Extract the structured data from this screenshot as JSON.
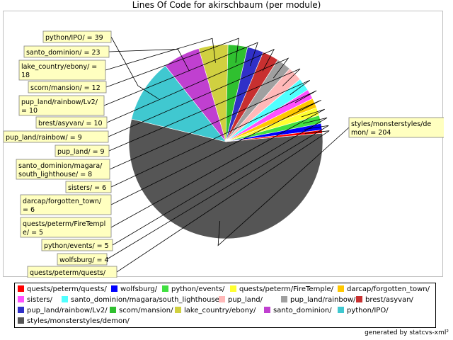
{
  "chart_data": {
    "type": "pie",
    "title": "Lines Of Code for akirschbaum (per module)",
    "slices": [
      {
        "name": "styles/monsterstyles/demon/",
        "label": [
          "styles/monsterstyles/de",
          "mon/ = 204"
        ],
        "value": 204,
        "color": "#555555"
      },
      {
        "name": "python/IPO/",
        "label": [
          "python/IPO/ = 39"
        ],
        "value": 39,
        "color": "#40c8d0"
      },
      {
        "name": "santo_dominion/",
        "label": [
          "santo_dominion/ = 23"
        ],
        "value": 23,
        "color": "#c040d0"
      },
      {
        "name": "lake_country/ebony/",
        "label": [
          "lake_country/ebony/ =",
          "18"
        ],
        "value": 18,
        "color": "#d0d040"
      },
      {
        "name": "scorn/mansion/",
        "label": [
          "scorn/mansion/ = 12"
        ],
        "value": 12,
        "color": "#30c030"
      },
      {
        "name": "pup_land/rainbow/Lv2/",
        "label": [
          "pup_land/rainbow/Lv2/",
          "= 10"
        ],
        "value": 10,
        "color": "#3030c8"
      },
      {
        "name": "brest/asyvan/",
        "label": [
          "brest/asyvan/ = 10"
        ],
        "value": 10,
        "color": "#c83030"
      },
      {
        "name": "pup_land/rainbow/",
        "label": [
          "pup_land/rainbow/ = 9"
        ],
        "value": 9,
        "color": "#a0a0a0"
      },
      {
        "name": "pup_land/",
        "label": [
          "pup_land/ = 9"
        ],
        "value": 9,
        "color": "#ffb8b8"
      },
      {
        "name": "santo_dominion/magara/south_lighthouse/",
        "label": [
          "santo_dominion/magara/",
          "south_lighthouse/ = 8"
        ],
        "value": 8,
        "color": "#50ffff"
      },
      {
        "name": "sisters/",
        "label": [
          "sisters/ = 6"
        ],
        "value": 6,
        "color": "#ff50ff"
      },
      {
        "name": "darcap/forgotten_town/",
        "label": [
          "darcap/forgotten_town/",
          "= 6"
        ],
        "value": 6,
        "color": "#ffc800"
      },
      {
        "name": "quests/peterm/FireTemple/",
        "label": [
          "quests/peterm/FireTempl",
          "e/ = 5"
        ],
        "value": 5,
        "color": "#ffff30"
      },
      {
        "name": "python/events/",
        "label": [
          "python/events/ = 5"
        ],
        "value": 5,
        "color": "#40e040"
      },
      {
        "name": "wolfsburg/",
        "label": [
          "wolfsburg/ = 4"
        ],
        "value": 4,
        "color": "#0000ff"
      },
      {
        "name": "quests/peterm/quests/",
        "label": [
          "quests/peterm/quests/"
        ],
        "value": 2,
        "color": "#ff0000"
      }
    ],
    "legend_placement": "bottom"
  },
  "legend": [
    {
      "name": "quests/peterm/quests/",
      "color": "#ff0000"
    },
    {
      "name": "wolfsburg/",
      "color": "#0000ff"
    },
    {
      "name": "python/events/",
      "color": "#40e040"
    },
    {
      "name": "quests/peterm/FireTemple/",
      "color": "#ffff30"
    },
    {
      "name": "darcap/forgotten_town/",
      "color": "#ffc800"
    },
    {
      "name": "sisters/",
      "color": "#ff50ff"
    },
    {
      "name": "santo_dominion/magara/south_lighthouse/",
      "color": "#50ffff"
    },
    {
      "name": "pup_land/",
      "color": "#ffb8b8"
    },
    {
      "name": "pup_land/rainbow/",
      "color": "#a0a0a0"
    },
    {
      "name": "brest/asyvan/",
      "color": "#c83030"
    },
    {
      "name": "pup_land/rainbow/Lv2/",
      "color": "#3030c8"
    },
    {
      "name": "scorn/mansion/",
      "color": "#30c030"
    },
    {
      "name": "lake_country/ebony/",
      "color": "#d0d040"
    },
    {
      "name": "santo_dominion/",
      "color": "#c040d0"
    },
    {
      "name": "python/IPO/",
      "color": "#40c8d0"
    },
    {
      "name": "styles/monsterstyles/demon/",
      "color": "#555555"
    }
  ],
  "footer": "generated by statcvs-xml²"
}
